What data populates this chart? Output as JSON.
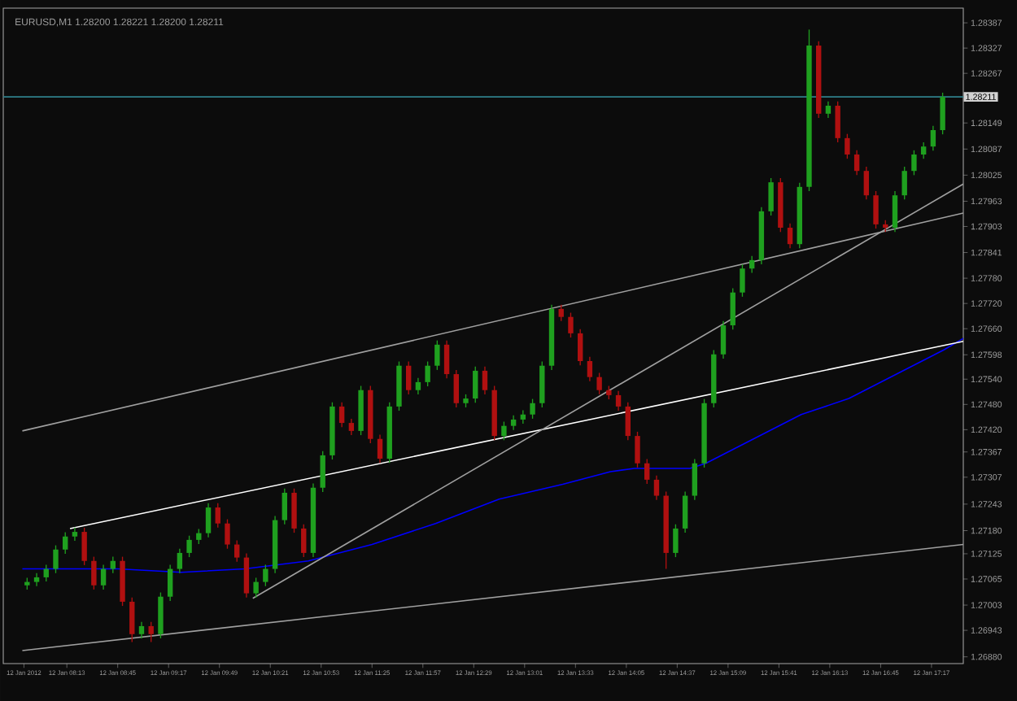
{
  "chart_data": {
    "type": "candlestick",
    "title": "EURUSD,M1 1.28200 1.28221 1.28200 1.28211",
    "x": [
      "2012-01-12T07:48",
      "2012-01-12T07:54",
      "2012-01-12T08:00",
      "2012-01-12T08:06",
      "2012-01-12T08:12",
      "2012-01-12T08:18",
      "2012-01-12T08:24",
      "2012-01-12T08:30",
      "2012-01-12T08:36",
      "2012-01-12T08:42",
      "2012-01-12T08:48",
      "2012-01-12T08:54",
      "2012-01-12T09:00",
      "2012-01-12T09:06",
      "2012-01-12T09:12",
      "2012-01-12T09:18",
      "2012-01-12T09:24",
      "2012-01-12T09:30",
      "2012-01-12T09:36",
      "2012-01-12T09:42",
      "2012-01-12T09:48",
      "2012-01-12T09:54",
      "2012-01-12T10:00",
      "2012-01-12T10:06",
      "2012-01-12T10:12",
      "2012-01-12T10:18",
      "2012-01-12T10:24",
      "2012-01-12T10:30",
      "2012-01-12T10:36",
      "2012-01-12T10:42",
      "2012-01-12T10:48",
      "2012-01-12T10:54",
      "2012-01-12T11:00",
      "2012-01-12T11:06",
      "2012-01-12T11:12",
      "2012-01-12T11:18",
      "2012-01-12T11:24",
      "2012-01-12T11:30",
      "2012-01-12T11:36",
      "2012-01-12T11:42",
      "2012-01-12T11:48",
      "2012-01-12T11:54",
      "2012-01-12T12:00",
      "2012-01-12T12:06",
      "2012-01-12T12:12",
      "2012-01-12T12:18",
      "2012-01-12T12:24",
      "2012-01-12T12:30",
      "2012-01-12T12:36",
      "2012-01-12T12:42",
      "2012-01-12T12:48",
      "2012-01-12T12:54",
      "2012-01-12T13:00",
      "2012-01-12T13:06",
      "2012-01-12T13:12",
      "2012-01-12T13:18",
      "2012-01-12T13:24",
      "2012-01-12T13:30",
      "2012-01-12T13:36",
      "2012-01-12T13:42",
      "2012-01-12T13:48",
      "2012-01-12T13:54",
      "2012-01-12T14:00",
      "2012-01-12T14:06",
      "2012-01-12T14:12",
      "2012-01-12T14:18",
      "2012-01-12T14:24",
      "2012-01-12T14:30",
      "2012-01-12T14:36",
      "2012-01-12T14:42",
      "2012-01-12T14:48",
      "2012-01-12T14:54",
      "2012-01-12T15:00",
      "2012-01-12T15:06",
      "2012-01-12T15:12",
      "2012-01-12T15:18",
      "2012-01-12T15:24",
      "2012-01-12T15:30",
      "2012-01-12T15:36",
      "2012-01-12T15:42",
      "2012-01-12T15:48",
      "2012-01-12T15:54",
      "2012-01-12T16:00",
      "2012-01-12T16:06",
      "2012-01-12T16:12",
      "2012-01-12T16:18",
      "2012-01-12T16:24",
      "2012-01-12T16:30",
      "2012-01-12T16:36",
      "2012-01-12T16:42",
      "2012-01-12T16:48",
      "2012-01-12T16:54",
      "2012-01-12T17:00",
      "2012-01-12T17:06",
      "2012-01-12T17:12",
      "2012-01-12T17:18",
      "2012-01-12T17:24"
    ],
    "ohlc": [
      [
        1.2705,
        1.27068,
        1.2704,
        1.27058
      ],
      [
        1.27058,
        1.27079,
        1.27048,
        1.27069
      ],
      [
        1.27069,
        1.27099,
        1.27059,
        1.27089
      ],
      [
        1.27089,
        1.27145,
        1.27079,
        1.27135
      ],
      [
        1.27135,
        1.27176,
        1.27125,
        1.27166
      ],
      [
        1.27166,
        1.27187,
        1.27156,
        1.27177
      ],
      [
        1.27177,
        1.27187,
        1.27098,
        1.27108
      ],
      [
        1.27108,
        1.27118,
        1.2704,
        1.2705
      ],
      [
        1.2705,
        1.27099,
        1.2704,
        1.27089
      ],
      [
        1.27089,
        1.27118,
        1.27079,
        1.27108
      ],
      [
        1.27108,
        1.27118,
        1.27001,
        1.27011
      ],
      [
        1.27011,
        1.27021,
        1.26915,
        1.26934
      ],
      [
        1.26934,
        1.26963,
        1.26924,
        1.26953
      ],
      [
        1.26953,
        1.26963,
        1.26915,
        1.26934
      ],
      [
        1.26934,
        1.27033,
        1.26924,
        1.27023
      ],
      [
        1.27023,
        1.27099,
        1.27013,
        1.27089
      ],
      [
        1.27089,
        1.27137,
        1.27079,
        1.27127
      ],
      [
        1.27127,
        1.27168,
        1.27117,
        1.27158
      ],
      [
        1.27158,
        1.27184,
        1.27148,
        1.27174
      ],
      [
        1.27174,
        1.27245,
        1.27164,
        1.27235
      ],
      [
        1.27235,
        1.27245,
        1.27187,
        1.27197
      ],
      [
        1.27197,
        1.27207,
        1.27137,
        1.27147
      ],
      [
        1.27147,
        1.27157,
        1.27106,
        1.27116
      ],
      [
        1.27116,
        1.27126,
        1.27021,
        1.27031
      ],
      [
        1.27031,
        1.27068,
        1.27021,
        1.27058
      ],
      [
        1.27058,
        1.27099,
        1.27048,
        1.27089
      ],
      [
        1.27089,
        1.27215,
        1.27079,
        1.27205
      ],
      [
        1.27205,
        1.2728,
        1.27195,
        1.2727
      ],
      [
        1.2727,
        1.2728,
        1.27175,
        1.27185
      ],
      [
        1.27185,
        1.27195,
        1.27117,
        1.27127
      ],
      [
        1.27127,
        1.27292,
        1.27117,
        1.27282
      ],
      [
        1.27282,
        1.27369,
        1.27272,
        1.27359
      ],
      [
        1.27359,
        1.27485,
        1.27349,
        1.27475
      ],
      [
        1.27475,
        1.27485,
        1.27426,
        1.27436
      ],
      [
        1.27436,
        1.27446,
        1.27407,
        1.27417
      ],
      [
        1.27417,
        1.27524,
        1.27407,
        1.27514
      ],
      [
        1.27514,
        1.27524,
        1.27388,
        1.27398
      ],
      [
        1.27398,
        1.27408,
        1.27341,
        1.27351
      ],
      [
        1.27351,
        1.27485,
        1.27341,
        1.27475
      ],
      [
        1.27475,
        1.27582,
        1.27465,
        1.27572
      ],
      [
        1.27572,
        1.27582,
        1.27504,
        1.27514
      ],
      [
        1.27514,
        1.27543,
        1.27504,
        1.27533
      ],
      [
        1.27533,
        1.27582,
        1.27523,
        1.27572
      ],
      [
        1.27572,
        1.27632,
        1.27562,
        1.27622
      ],
      [
        1.27622,
        1.27632,
        1.27542,
        1.27552
      ],
      [
        1.27552,
        1.27562,
        1.27473,
        1.27483
      ],
      [
        1.27483,
        1.27504,
        1.27473,
        1.27494
      ],
      [
        1.27494,
        1.2757,
        1.27484,
        1.2756
      ],
      [
        1.2756,
        1.2757,
        1.27504,
        1.27514
      ],
      [
        1.27514,
        1.27524,
        1.27395,
        1.27405
      ],
      [
        1.27405,
        1.27439,
        1.27395,
        1.27429
      ],
      [
        1.27429,
        1.27454,
        1.27419,
        1.27444
      ],
      [
        1.27444,
        1.27466,
        1.27434,
        1.27456
      ],
      [
        1.27456,
        1.27493,
        1.27446,
        1.27483
      ],
      [
        1.27483,
        1.27582,
        1.27473,
        1.27572
      ],
      [
        1.27572,
        1.27717,
        1.27562,
        1.27707
      ],
      [
        1.27707,
        1.27717,
        1.27678,
        1.27688
      ],
      [
        1.27688,
        1.27698,
        1.27639,
        1.27649
      ],
      [
        1.27649,
        1.27659,
        1.27573,
        1.27583
      ],
      [
        1.27583,
        1.27593,
        1.27535,
        1.27545
      ],
      [
        1.27545,
        1.27555,
        1.27504,
        1.27514
      ],
      [
        1.27514,
        1.27524,
        1.27492,
        1.27502
      ],
      [
        1.27502,
        1.27512,
        1.27465,
        1.27475
      ],
      [
        1.27475,
        1.27485,
        1.27395,
        1.27405
      ],
      [
        1.27405,
        1.27415,
        1.2733,
        1.2734
      ],
      [
        1.2734,
        1.2735,
        1.27291,
        1.27301
      ],
      [
        1.27301,
        1.27311,
        1.27253,
        1.27263
      ],
      [
        1.27263,
        1.27273,
        1.27089,
        1.27127
      ],
      [
        1.27127,
        1.27195,
        1.27117,
        1.27185
      ],
      [
        1.27185,
        1.27273,
        1.27175,
        1.27263
      ],
      [
        1.27263,
        1.2735,
        1.27253,
        1.2734
      ],
      [
        1.2734,
        1.27493,
        1.2733,
        1.27483
      ],
      [
        1.27483,
        1.27609,
        1.27473,
        1.27599
      ],
      [
        1.27599,
        1.27678,
        1.27589,
        1.27668
      ],
      [
        1.27668,
        1.27756,
        1.27658,
        1.27746
      ],
      [
        1.27746,
        1.27813,
        1.27736,
        1.27803
      ],
      [
        1.27803,
        1.27833,
        1.27793,
        1.27823
      ],
      [
        1.27823,
        1.27949,
        1.27813,
        1.27939
      ],
      [
        1.27939,
        1.28018,
        1.27929,
        1.28008
      ],
      [
        1.28008,
        1.28018,
        1.2789,
        1.279
      ],
      [
        1.279,
        1.2791,
        1.27851,
        1.27861
      ],
      [
        1.27861,
        1.28007,
        1.27851,
        1.27997
      ],
      [
        1.27997,
        1.28371,
        1.27987,
        1.28333
      ],
      [
        1.28333,
        1.28343,
        1.28161,
        1.28171
      ],
      [
        1.28171,
        1.282,
        1.28161,
        1.2819
      ],
      [
        1.2819,
        1.282,
        1.28103,
        1.28113
      ],
      [
        1.28113,
        1.28123,
        1.28064,
        1.28074
      ],
      [
        1.28074,
        1.28084,
        1.28025,
        1.28035
      ],
      [
        1.28035,
        1.28045,
        1.27967,
        1.27977
      ],
      [
        1.27977,
        1.27987,
        1.27898,
        1.27908
      ],
      [
        1.27908,
        1.27918,
        1.2789,
        1.279
      ],
      [
        1.279,
        1.27987,
        1.2789,
        1.27977
      ],
      [
        1.27977,
        1.28045,
        1.27967,
        1.28035
      ],
      [
        1.28035,
        1.28084,
        1.28025,
        1.28074
      ],
      [
        1.28074,
        1.28103,
        1.28064,
        1.28093
      ],
      [
        1.28093,
        1.28142,
        1.28083,
        1.28132
      ],
      [
        1.28132,
        1.28221,
        1.28122,
        1.28211
      ]
    ],
    "colors": [
      "#1fa01f",
      "#1fa01f",
      "#1fa01f",
      "#1fa01f",
      "#1fa01f",
      "#1fa01f",
      "#b01010",
      "#b01010",
      "#1fa01f",
      "#1fa01f",
      "#b01010",
      "#b01010",
      "#1fa01f",
      "#b01010",
      "#1fa01f",
      "#1fa01f",
      "#1fa01f",
      "#1fa01f",
      "#1fa01f",
      "#1fa01f",
      "#b01010",
      "#b01010",
      "#b01010",
      "#b01010",
      "#1fa01f",
      "#1fa01f",
      "#1fa01f",
      "#1fa01f",
      "#b01010",
      "#b01010",
      "#1fa01f",
      "#1fa01f",
      "#1fa01f",
      "#b01010",
      "#b01010",
      "#1fa01f",
      "#b01010",
      "#b01010",
      "#1fa01f",
      "#1fa01f",
      "#b01010",
      "#1fa01f",
      "#1fa01f",
      "#1fa01f",
      "#b01010",
      "#b01010",
      "#1fa01f",
      "#1fa01f",
      "#b01010",
      "#b01010",
      "#1fa01f",
      "#1fa01f",
      "#1fa01f",
      "#1fa01f",
      "#1fa01f",
      "#1fa01f",
      "#b01010",
      "#b01010",
      "#b01010",
      "#b01010",
      "#b01010",
      "#b01010",
      "#b01010",
      "#b01010",
      "#b01010",
      "#b01010",
      "#b01010",
      "#b01010",
      "#1fa01f",
      "#1fa01f",
      "#1fa01f",
      "#1fa01f",
      "#1fa01f",
      "#1fa01f",
      "#1fa01f",
      "#1fa01f",
      "#1fa01f",
      "#1fa01f",
      "#1fa01f",
      "#b01010",
      "#b01010",
      "#1fa01f",
      "#1fa01f",
      "#b01010",
      "#1fa01f",
      "#b01010",
      "#b01010",
      "#b01010",
      "#b01010",
      "#b01010",
      "#b01010",
      "#1fa01f",
      "#1fa01f",
      "#1fa01f",
      "#1fa01f",
      "#1fa01f",
      "#1fa01f"
    ],
    "series": [
      {
        "type": "line",
        "color": "#0000ff",
        "x": [
          "2012-01-12T07:45",
          "2012-01-12T08:45",
          "2012-01-12T09:25",
          "2012-01-12T10:05",
          "2012-01-12T10:45",
          "2012-01-12T11:25",
          "2012-01-12T12:05",
          "2012-01-12T12:45",
          "2012-01-12T13:25",
          "2012-01-12T13:55",
          "2012-01-12T14:10",
          "2012-01-12T14:45",
          "2012-01-12T14:55",
          "2012-01-12T15:25",
          "2012-01-12T15:55",
          "2012-01-12T16:25",
          "2012-01-12T16:55",
          "2012-01-12T17:25",
          "2012-01-12T17:37"
        ],
        "values": [
          1.27089,
          1.27089,
          1.27081,
          1.27089,
          1.27108,
          1.27147,
          1.27197,
          1.27255,
          1.2729,
          1.2732,
          1.27328,
          1.27328,
          1.2734,
          1.27398,
          1.27456,
          1.27494,
          1.27552,
          1.2761,
          1.27637
        ]
      },
      {
        "type": "line",
        "color": "#a0a0a0",
        "x": [
          "2012-01-12T07:45",
          "2012-01-12T17:37"
        ],
        "values": [
          1.27417,
          1.27935
        ]
      },
      {
        "type": "line",
        "color": "#ffffff",
        "x": [
          "2012-01-12T08:15",
          "2012-01-12T17:37"
        ],
        "values": [
          1.27185,
          1.2763
        ]
      },
      {
        "type": "line",
        "color": "#a0a0a0",
        "x": [
          "2012-01-12T07:45",
          "2012-01-12T17:37"
        ],
        "values": [
          1.26895,
          1.27147
        ]
      },
      {
        "type": "line",
        "color": "#a0a0a0",
        "x": [
          "2012-01-12T10:10",
          "2012-01-12T17:37"
        ],
        "values": [
          1.27019,
          1.28004
        ]
      }
    ],
    "ref_lines": [
      {
        "axis": "y",
        "value": 1.28211,
        "label": "1.28211",
        "color": "#2f7f8a"
      }
    ],
    "xlim": [
      "2012-01-12T07:33",
      "2012-01-12T17:37"
    ],
    "ylim": [
      1.26864,
      1.28422
    ],
    "xticks": [
      {
        "value": "2012-01-12T07:46",
        "label": "12 Jan 2012"
      },
      {
        "value": "2012-01-12T08:13",
        "label": "12 Jan 08:13"
      },
      {
        "value": "2012-01-12T08:45",
        "label": "12 Jan 08:45"
      },
      {
        "value": "2012-01-12T09:17",
        "label": "12 Jan 09:17"
      },
      {
        "value": "2012-01-12T09:49",
        "label": "12 Jan 09:49"
      },
      {
        "value": "2012-01-12T10:21",
        "label": "12 Jan 10:21"
      },
      {
        "value": "2012-01-12T10:53",
        "label": "12 Jan 10:53"
      },
      {
        "value": "2012-01-12T11:25",
        "label": "12 Jan 11:25"
      },
      {
        "value": "2012-01-12T11:57",
        "label": "12 Jan 11:57"
      },
      {
        "value": "2012-01-12T12:29",
        "label": "12 Jan 12:29"
      },
      {
        "value": "2012-01-12T13:01",
        "label": "12 Jan 13:01"
      },
      {
        "value": "2012-01-12T13:33",
        "label": "12 Jan 13:33"
      },
      {
        "value": "2012-01-12T14:05",
        "label": "12 Jan 14:05"
      },
      {
        "value": "2012-01-12T14:37",
        "label": "12 Jan 14:37"
      },
      {
        "value": "2012-01-12T15:09",
        "label": "12 Jan 15:09"
      },
      {
        "value": "2012-01-12T15:41",
        "label": "12 Jan 15:41"
      },
      {
        "value": "2012-01-12T16:13",
        "label": "12 Jan 16:13"
      },
      {
        "value": "2012-01-12T16:45",
        "label": "12 Jan 16:45"
      },
      {
        "value": "2012-01-12T17:17",
        "label": "12 Jan 17:17"
      }
    ],
    "yticks": [
      {
        "value": 1.2688,
        "label": "1.26880"
      },
      1.26943,
      1.27003,
      1.27065,
      1.27125,
      {
        "value": 1.2718,
        "label": "1.27180"
      },
      1.27243,
      1.27307,
      1.27367,
      {
        "value": 1.2742,
        "label": "1.27420"
      },
      {
        "value": 1.2748,
        "label": "1.27480"
      },
      {
        "value": 1.2754,
        "label": "1.27540"
      },
      1.27598,
      {
        "value": 1.2766,
        "label": "1.27660"
      },
      {
        "value": 1.2772,
        "label": "1.27720"
      },
      {
        "value": 1.2778,
        "label": "1.27780"
      },
      1.27841,
      1.27903,
      1.27963,
      1.28025,
      1.28087,
      1.28149,
      1.28267,
      1.28327,
      1.28387
    ]
  }
}
